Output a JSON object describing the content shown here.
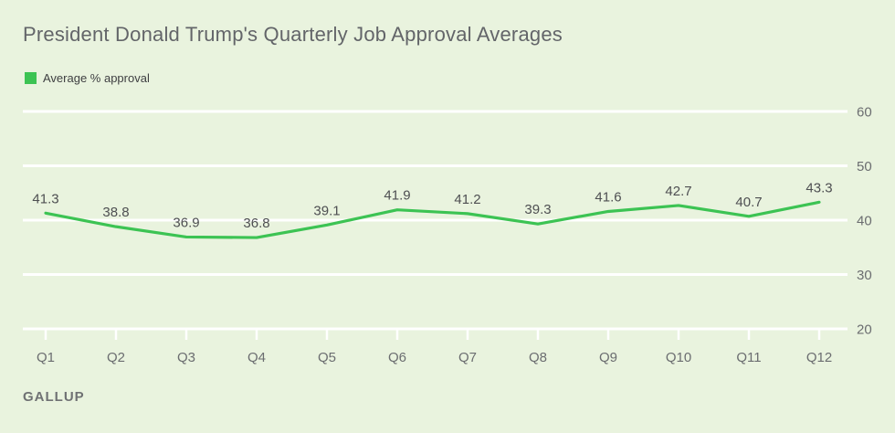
{
  "chart_data": {
    "type": "line",
    "title": "President Donald Trump's Quarterly Job Approval Averages",
    "legend": [
      {
        "label": "Average % approval",
        "color": "#3cc353"
      }
    ],
    "legend_position": "top-left",
    "categories": [
      "Q1",
      "Q2",
      "Q3",
      "Q4",
      "Q5",
      "Q6",
      "Q7",
      "Q8",
      "Q9",
      "Q10",
      "Q11",
      "Q12"
    ],
    "series": [
      {
        "name": "Average % approval",
        "values": [
          41.3,
          38.8,
          36.9,
          36.8,
          39.1,
          41.9,
          41.2,
          39.3,
          41.6,
          42.7,
          40.7,
          43.3
        ]
      }
    ],
    "xlabel": "",
    "ylabel": "",
    "ylim": [
      20,
      60
    ],
    "yticks": [
      20,
      30,
      40,
      50,
      60
    ],
    "y_axis_side": "right",
    "grid": "horizontal",
    "data_labels": true
  },
  "footer": {
    "source": "GALLUP"
  },
  "colors": {
    "accent": "#3cc353",
    "background": "#e9f3de",
    "gridline": "#ffffff",
    "title_text": "#636569",
    "axis_text": "#6b6d70",
    "data_label_text": "#4e4f52"
  }
}
